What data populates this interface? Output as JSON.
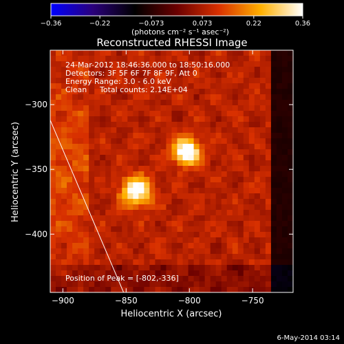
{
  "chart_data": {
    "type": "heatmap",
    "title": "Reconstructed RHESSI Image",
    "xlabel": "Heliocentric X (arcsec)",
    "ylabel": "Heliocentric Y (arcsec)",
    "xlim": [
      -910,
      -718
    ],
    "ylim": [
      -445,
      -258
    ],
    "x_ticks": [
      -900,
      -850,
      -800,
      -750
    ],
    "y_ticks": [
      -300,
      -350,
      -400
    ],
    "x_tick_labels": [
      "−900",
      "−850",
      "−800",
      "−750"
    ],
    "y_tick_labels": [
      "−300",
      "−350",
      "−400"
    ],
    "colorbar": {
      "min": -0.36,
      "max": 0.36,
      "tick_labels": [
        "−0.36",
        "−0.22",
        "−0.073",
        "0.073",
        "0.22",
        "0.36"
      ],
      "ticks": [
        -0.36,
        -0.22,
        -0.073,
        0.073,
        0.22,
        0.36
      ],
      "unit_label": "(photons cm⁻² s⁻¹ asec⁻²)",
      "stops": [
        "#0000ff",
        "#2a007a",
        "#000000",
        "#6a0000",
        "#d83000",
        "#ffb000",
        "#ffffff"
      ]
    },
    "sources": [
      {
        "x": -802,
        "y": -336,
        "peak": 0.36,
        "sigma": 7
      },
      {
        "x": -842,
        "y": -367,
        "peak": 0.3,
        "sigma": 8
      }
    ],
    "limb_line": [
      [
        -910,
        -312
      ],
      [
        -852,
        -445
      ]
    ],
    "annotations": {
      "time_range": "24-Mar-2012 18:46:36.000 to 18:50:16.000",
      "detectors": "Detectors: 3F 5F 6F 7F 8F 9F, Att 0",
      "energy_range": "Energy Range: 3.0 - 6.0 keV",
      "method": "Clean",
      "total_counts": "Total counts: 2.14E+04",
      "peak_position": "Position of Peak = [-802,-336]"
    }
  },
  "footer": {
    "timestamp": "6-May-2014 03:14"
  }
}
